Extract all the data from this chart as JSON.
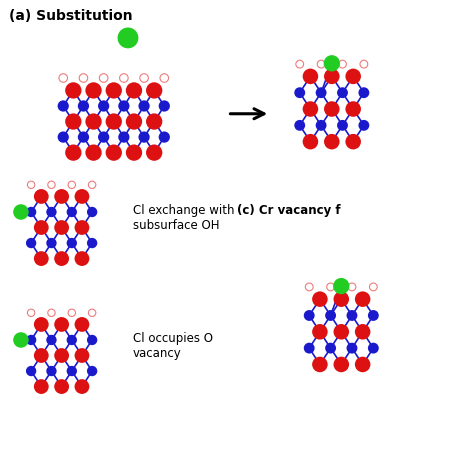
{
  "title_a": "(a) Substitution",
  "title_c": "(c) Cr vacancy f",
  "label_b1": "Cl exchange with\nsubsurface OH",
  "label_b2": "Cl occupies O\nvacancy",
  "bg_color": "#ffffff",
  "RED": "#dd1111",
  "BLUE": "#1a1acc",
  "GREEN": "#22cc22",
  "figsize": [
    4.74,
    4.74
  ],
  "dpi": 100
}
